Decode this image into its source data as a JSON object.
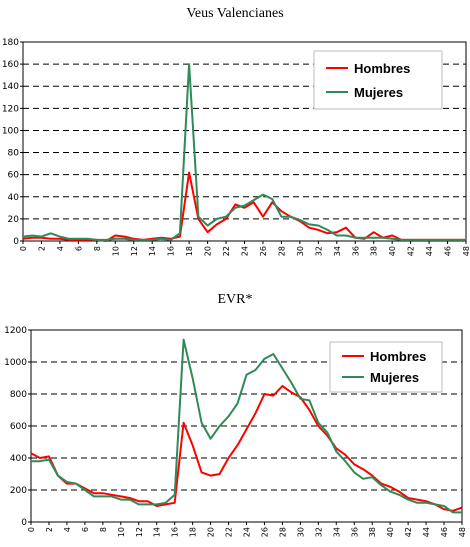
{
  "chart_data": [
    {
      "type": "line",
      "title": "Veus Valencianes",
      "xlabel": "",
      "ylabel": "",
      "ylim": [
        0,
        180
      ],
      "yticks": [
        "0",
        "20",
        "40",
        "60",
        "80",
        "100",
        "120",
        "140",
        "160",
        "180"
      ],
      "x": [
        0,
        1,
        2,
        3,
        4,
        5,
        6,
        7,
        8,
        9,
        10,
        11,
        12,
        13,
        14,
        15,
        16,
        17,
        18,
        19,
        20,
        21,
        22,
        23,
        24,
        25,
        26,
        27,
        28,
        29,
        30,
        31,
        32,
        33,
        34,
        35,
        36,
        37,
        38,
        39,
        40,
        41,
        42,
        43,
        44,
        45,
        46,
        47,
        48
      ],
      "xticks": [
        "0",
        "2",
        "4",
        "6",
        "8",
        "10",
        "12",
        "14",
        "16",
        "18",
        "20",
        "22",
        "24",
        "26",
        "28",
        "30",
        "32",
        "34",
        "36",
        "38",
        "40",
        "42",
        "44",
        "46",
        "48"
      ],
      "grid": true,
      "legend_position": "top-right",
      "series": [
        {
          "name": "Hombres",
          "color": "#ff0000",
          "values": [
            2,
            3,
            3,
            2,
            2,
            1,
            1,
            1,
            1,
            0,
            5,
            4,
            2,
            1,
            2,
            3,
            2,
            4,
            62,
            20,
            8,
            15,
            20,
            33,
            30,
            35,
            22,
            35,
            27,
            22,
            18,
            12,
            10,
            7,
            8,
            12,
            3,
            2,
            8,
            3,
            5,
            1,
            1,
            1,
            1,
            1,
            1,
            1,
            1
          ]
        },
        {
          "name": "Mujeres",
          "color": "#2e8b57",
          "values": [
            4,
            5,
            4,
            7,
            4,
            2,
            2,
            2,
            1,
            1,
            2,
            2,
            1,
            1,
            1,
            2,
            1,
            7,
            160,
            22,
            14,
            20,
            22,
            30,
            32,
            37,
            42,
            38,
            22,
            22,
            19,
            15,
            14,
            10,
            5,
            5,
            3,
            3,
            3,
            3,
            2,
            1,
            1,
            1,
            1,
            1,
            1,
            1,
            1
          ]
        }
      ]
    },
    {
      "type": "line",
      "title": "EVR*",
      "xlabel": "",
      "ylabel": "",
      "ylim": [
        0,
        1200
      ],
      "yticks": [
        "0",
        "200",
        "400",
        "600",
        "800",
        "1000",
        "1200"
      ],
      "x": [
        0,
        1,
        2,
        3,
        4,
        5,
        6,
        7,
        8,
        9,
        10,
        11,
        12,
        13,
        14,
        15,
        16,
        17,
        18,
        19,
        20,
        21,
        22,
        23,
        24,
        25,
        26,
        27,
        28,
        29,
        30,
        31,
        32,
        33,
        34,
        35,
        36,
        37,
        38,
        39,
        40,
        41,
        42,
        43,
        44,
        45,
        46,
        47,
        48
      ],
      "xticks": [
        "0",
        "2",
        "4",
        "6",
        "8",
        "10",
        "12",
        "14",
        "16",
        "18",
        "20",
        "22",
        "24",
        "26",
        "28",
        "30",
        "32",
        "34",
        "36",
        "38",
        "40",
        "42",
        "44",
        "46",
        "48"
      ],
      "grid": true,
      "legend_position": "top-right",
      "series": [
        {
          "name": "Hombres",
          "color": "#ff0000",
          "values": [
            430,
            400,
            410,
            290,
            240,
            240,
            210,
            180,
            180,
            170,
            160,
            150,
            130,
            130,
            100,
            110,
            120,
            620,
            480,
            310,
            290,
            300,
            400,
            480,
            580,
            680,
            800,
            790,
            850,
            810,
            780,
            700,
            600,
            540,
            460,
            420,
            360,
            330,
            290,
            240,
            220,
            190,
            150,
            140,
            130,
            110,
            80,
            70,
            90
          ]
        },
        {
          "name": "Mujeres",
          "color": "#2e8b57",
          "values": [
            380,
            380,
            390,
            290,
            250,
            240,
            200,
            160,
            160,
            160,
            140,
            140,
            110,
            110,
            110,
            120,
            170,
            1140,
            900,
            620,
            520,
            600,
            660,
            740,
            920,
            950,
            1020,
            1050,
            960,
            870,
            770,
            760,
            620,
            560,
            440,
            380,
            310,
            270,
            280,
            230,
            190,
            170,
            140,
            120,
            120,
            110,
            100,
            60,
            60
          ]
        }
      ]
    }
  ]
}
